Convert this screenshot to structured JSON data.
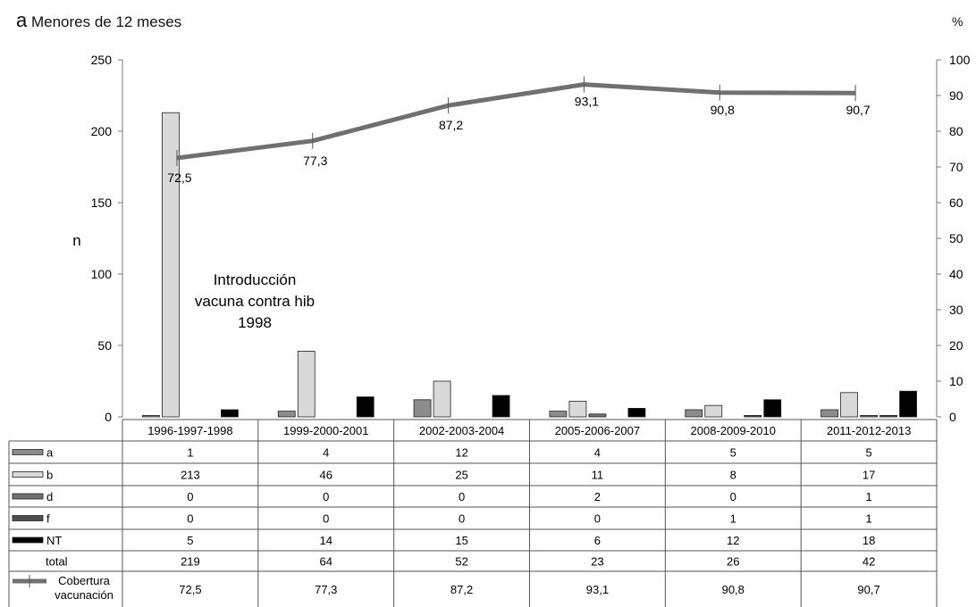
{
  "title_letter": "a",
  "title_text": "Menores de 12 meses",
  "chart_data": {
    "type": "bar",
    "categories": [
      "1996-1997-1998",
      "1999-2000-2001",
      "2002-2003-2004",
      "2005-2006-2007",
      "2008-2009-2010",
      "2011-2012-2013"
    ],
    "series": [
      {
        "name": "a",
        "values": [
          1,
          4,
          12,
          4,
          5,
          5
        ],
        "color": "#8c8c8c"
      },
      {
        "name": "b",
        "values": [
          213,
          46,
          25,
          11,
          8,
          17
        ],
        "color": "#d9d9d9"
      },
      {
        "name": "d",
        "values": [
          0,
          0,
          0,
          2,
          0,
          1
        ],
        "color": "#707070"
      },
      {
        "name": "f",
        "values": [
          0,
          0,
          0,
          0,
          1,
          1
        ],
        "color": "#4d4d4d"
      },
      {
        "name": "NT",
        "values": [
          5,
          14,
          15,
          6,
          12,
          18
        ],
        "color": "#000000"
      }
    ],
    "total": {
      "name": "total",
      "values": [
        219,
        64,
        52,
        23,
        26,
        42
      ]
    },
    "line": {
      "name": "Cobertura vacunación",
      "values": [
        72.5,
        77.3,
        87.2,
        93.1,
        90.8,
        90.7
      ],
      "labels": [
        "72,5",
        "77,3",
        "87,2",
        "93,1",
        "90,8",
        "90,7"
      ],
      "color": "#707070"
    },
    "ylabel_left": "n",
    "ylabel_right": "%",
    "ylim_left": [
      0,
      250
    ],
    "ylim_right": [
      0,
      100
    ],
    "yticks_left": [
      "0",
      "50",
      "100",
      "150",
      "200",
      "250"
    ],
    "yticks_right": [
      "0",
      "10",
      "20",
      "30",
      "40",
      "50",
      "60",
      "70",
      "80",
      "90",
      "100"
    ],
    "annotation": [
      "Introducción",
      "vacuna contra hib",
      "1998"
    ],
    "grid": false,
    "legend": "data-table"
  }
}
